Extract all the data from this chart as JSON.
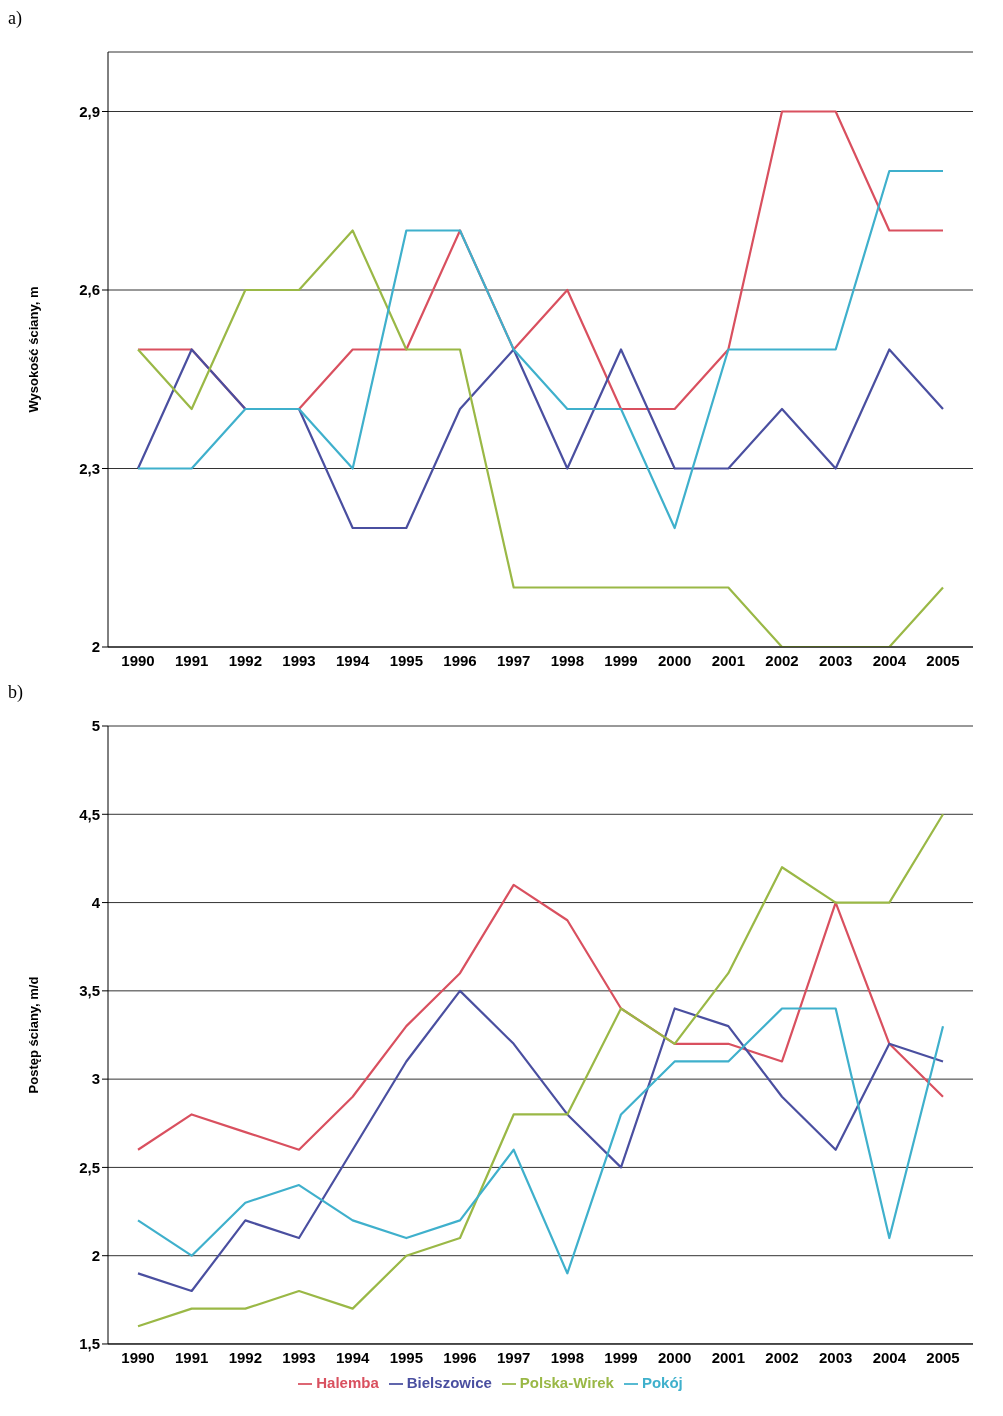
{
  "chart_data": [
    {
      "type": "line",
      "annotations": [
        "a)"
      ],
      "ylabel": "Wysokość ściany, m",
      "categories": [
        "1990",
        "1991",
        "1992",
        "1993",
        "1994",
        "1995",
        "1996",
        "1997",
        "1998",
        "1999",
        "2000",
        "2001",
        "2002",
        "2003",
        "2004",
        "2005"
      ],
      "ylim": [
        2,
        3
      ],
      "yticks": [
        {
          "value": 2,
          "label": "2"
        },
        {
          "value": 2.3,
          "label": "2,3"
        },
        {
          "value": 2.6,
          "label": "2,6"
        },
        {
          "value": 2.9,
          "label": "2,9"
        }
      ],
      "grid": "y",
      "legend": false,
      "marker": "none",
      "line_style": "solid",
      "series": [
        {
          "color": "#d9505f",
          "values": [
            2.5,
            2.5,
            2.4,
            2.4,
            2.5,
            2.5,
            2.7,
            2.5,
            2.6,
            2.4,
            2.4,
            2.5,
            2.9,
            2.9,
            2.7,
            2.7
          ]
        },
        {
          "color": "#4a4fa0",
          "values": [
            2.3,
            2.5,
            2.4,
            2.4,
            2.2,
            2.2,
            2.4,
            2.5,
            2.3,
            2.5,
            2.3,
            2.3,
            2.4,
            2.3,
            2.5,
            2.4
          ]
        },
        {
          "color": "#9ab846",
          "values": [
            2.5,
            2.4,
            2.6,
            2.6,
            2.7,
            2.5,
            2.5,
            2.1,
            2.1,
            2.1,
            2.1,
            2.1,
            2.0,
            2.0,
            2.0,
            2.1
          ]
        },
        {
          "color": "#3fb0cc",
          "values": [
            2.3,
            2.3,
            2.4,
            2.4,
            2.3,
            2.7,
            2.7,
            2.5,
            2.4,
            2.4,
            2.2,
            2.5,
            2.5,
            2.5,
            2.8,
            2.8
          ]
        }
      ]
    },
    {
      "type": "line",
      "annotations": [
        "b)"
      ],
      "ylabel": "Postęp ściany, m/d",
      "categories": [
        "1990",
        "1991",
        "1992",
        "1993",
        "1994",
        "1995",
        "1996",
        "1997",
        "1998",
        "1999",
        "2000",
        "2001",
        "2002",
        "2003",
        "2004",
        "2005"
      ],
      "ylim": [
        1.5,
        5
      ],
      "yticks": [
        {
          "value": 1.5,
          "label": "1,5"
        },
        {
          "value": 2,
          "label": "2"
        },
        {
          "value": 2.5,
          "label": "2,5"
        },
        {
          "value": 3,
          "label": "3"
        },
        {
          "value": 3.5,
          "label": "3,5"
        },
        {
          "value": 4,
          "label": "4"
        },
        {
          "value": 4.5,
          "label": "4,5"
        },
        {
          "value": 5,
          "label": "5"
        }
      ],
      "grid": "y",
      "legend": "bottom",
      "marker": "none",
      "line_style": "solid",
      "series": [
        {
          "name": "Halemba",
          "color": "#d9505f",
          "values": [
            2.6,
            2.8,
            2.7,
            2.6,
            2.9,
            3.3,
            3.6,
            4.1,
            3.9,
            3.4,
            3.2,
            3.2,
            3.1,
            4.0,
            3.2,
            2.9
          ]
        },
        {
          "name": "Bielszowice",
          "color": "#4a4fa0",
          "values": [
            1.9,
            1.8,
            2.2,
            2.1,
            2.6,
            3.1,
            3.5,
            3.2,
            2.8,
            2.5,
            3.4,
            3.3,
            2.9,
            2.6,
            3.2,
            3.1
          ]
        },
        {
          "name": "Polska-Wirek",
          "color": "#9ab846",
          "values": [
            1.6,
            1.7,
            1.7,
            1.8,
            1.7,
            2.0,
            2.1,
            2.8,
            2.8,
            3.4,
            3.2,
            3.6,
            4.2,
            4.0,
            4.0,
            4.5
          ]
        },
        {
          "name": "Pokój",
          "color": "#3fb0cc",
          "values": [
            2.2,
            2.0,
            2.3,
            2.4,
            2.2,
            2.1,
            2.2,
            2.6,
            1.9,
            2.8,
            3.1,
            3.1,
            3.4,
            3.4,
            2.1,
            3.3
          ]
        }
      ]
    }
  ]
}
